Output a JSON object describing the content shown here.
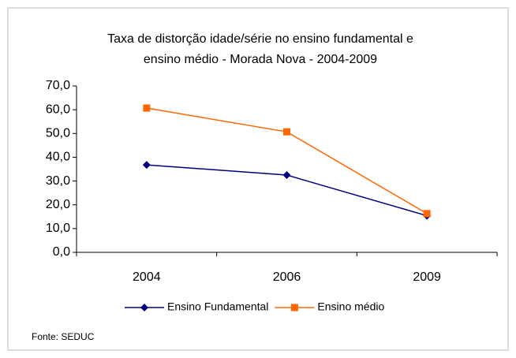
{
  "chart_data": {
    "type": "line",
    "title": [
      "Taxa de distorção idade/série no ensino fundamental e",
      "ensino médio - Morada Nova -  2004-2009"
    ],
    "categories": [
      "2004",
      "2006",
      "2009"
    ],
    "series": [
      {
        "name": "Ensino Fundamental",
        "color": "#000080",
        "marker": "diamond",
        "values": [
          36.8,
          32.5,
          15.4
        ]
      },
      {
        "name": "Ensino médio",
        "color": "#ff6600",
        "marker": "square",
        "values": [
          60.7,
          50.7,
          16.3
        ]
      }
    ],
    "ylim": [
      0,
      70
    ],
    "yticks": [
      {
        "value": 0,
        "label": "0,0"
      },
      {
        "value": 10,
        "label": "10,0"
      },
      {
        "value": 20,
        "label": "20,0"
      },
      {
        "value": 30,
        "label": "30,0"
      },
      {
        "value": 40,
        "label": "40,0"
      },
      {
        "value": 50,
        "label": "50,0"
      },
      {
        "value": 60,
        "label": "60,0"
      },
      {
        "value": 70,
        "label": "70,0"
      }
    ],
    "grid": false,
    "legend": "bottom",
    "source": "Fonte: SEDUC"
  }
}
